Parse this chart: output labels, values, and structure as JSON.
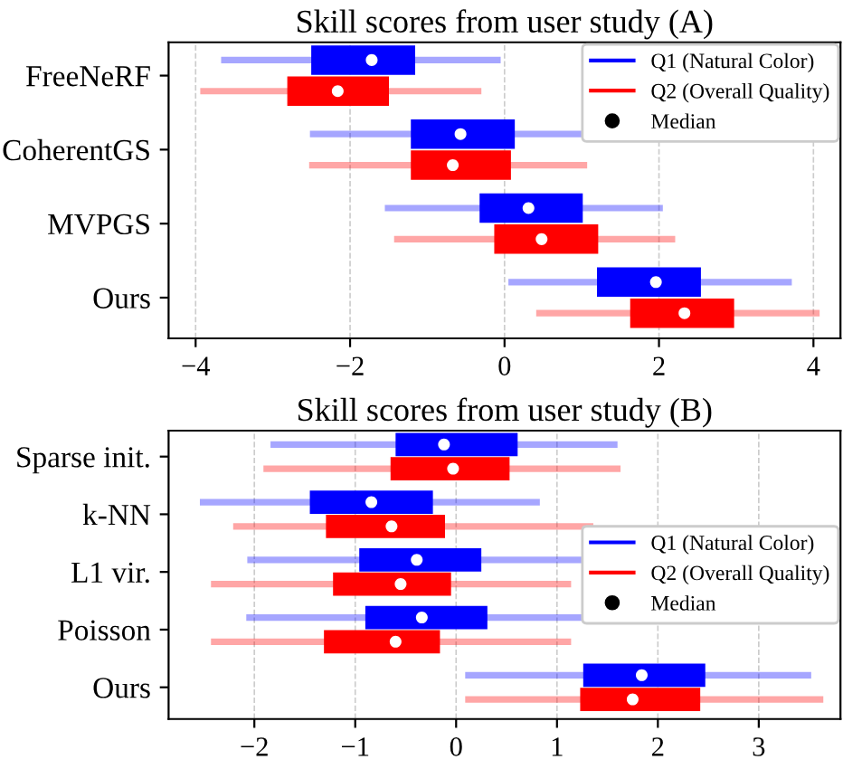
{
  "chart_data": [
    {
      "type": "box",
      "orientation": "horizontal",
      "title": "Skill scores from user study (A)",
      "categories": [
        "FreeNeRF",
        "CoherentGS",
        "MVPGS",
        "Ours"
      ],
      "xlim": [
        -4.35,
        4.35
      ],
      "xticks": [
        {
          "value": -4,
          "label": "−4"
        },
        {
          "value": -2,
          "label": "−2"
        },
        0,
        2,
        4
      ],
      "grid": "x",
      "legend": "top right",
      "annotations": [
        "Median"
      ],
      "series": [
        {
          "name": "Q1 (Natural Color)",
          "color": "#0000ff",
          "boxes": [
            {
              "low": -3.67,
              "q1": -2.49,
              "median": -1.72,
              "q3": -1.17,
              "high": -0.05
            },
            {
              "low": -2.52,
              "q1": -1.2,
              "median": -0.57,
              "q3": 0.12,
              "high": 1.08
            },
            {
              "low": -1.55,
              "q1": -0.31,
              "median": 0.31,
              "q3": 1.0,
              "high": 2.05
            },
            {
              "low": 0.05,
              "q1": 1.21,
              "median": 1.96,
              "q3": 2.53,
              "high": 3.72
            }
          ]
        },
        {
          "name": "Q2 (Overall Quality)",
          "color": "#ff0000",
          "boxes": [
            {
              "low": -3.94,
              "q1": -2.8,
              "median": -2.16,
              "q3": -1.51,
              "high": -0.3
            },
            {
              "low": -2.53,
              "q1": -1.2,
              "median": -0.67,
              "q3": 0.07,
              "high": 1.07
            },
            {
              "low": -1.43,
              "q1": -0.12,
              "median": 0.48,
              "q3": 1.2,
              "high": 2.21
            },
            {
              "low": 0.41,
              "q1": 1.64,
              "median": 2.33,
              "q3": 2.96,
              "high": 4.08
            }
          ]
        }
      ]
    },
    {
      "type": "box",
      "orientation": "horizontal",
      "title": "Skill scores from user study (B)",
      "categories": [
        "Sparse init.",
        "k-NN",
        "L1 vir.",
        "Poisson",
        "Ours"
      ],
      "xlim": [
        -2.85,
        3.81
      ],
      "xticks": [
        {
          "value": -2,
          "label": "−2"
        },
        {
          "value": -1,
          "label": "−1"
        },
        0,
        1,
        2,
        3
      ],
      "grid": "x",
      "legend": "right",
      "annotations": [
        "Median"
      ],
      "series": [
        {
          "name": "Q1 (Natural Color)",
          "color": "#0000ff",
          "boxes": [
            {
              "low": -1.84,
              "q1": -0.59,
              "median": -0.12,
              "q3": 0.6,
              "high": 1.6
            },
            {
              "low": -2.54,
              "q1": -1.44,
              "median": -0.84,
              "q3": -0.24,
              "high": 0.83
            },
            {
              "low": -2.07,
              "q1": -0.95,
              "median": -0.39,
              "q3": 0.24,
              "high": 1.31
            },
            {
              "low": -2.08,
              "q1": -0.89,
              "median": -0.34,
              "q3": 0.3,
              "high": 1.31
            },
            {
              "low": 0.09,
              "q1": 1.27,
              "median": 1.84,
              "q3": 2.46,
              "high": 3.52
            }
          ]
        },
        {
          "name": "Q2 (Overall Quality)",
          "color": "#ff0000",
          "boxes": [
            {
              "low": -1.91,
              "q1": -0.64,
              "median": -0.03,
              "q3": 0.52,
              "high": 1.63
            },
            {
              "low": -2.21,
              "q1": -1.28,
              "median": -0.64,
              "q3": -0.12,
              "high": 1.36
            },
            {
              "low": -2.43,
              "q1": -1.21,
              "median": -0.55,
              "q3": -0.06,
              "high": 1.14
            },
            {
              "low": -2.43,
              "q1": -1.3,
              "median": -0.6,
              "q3": -0.17,
              "high": 1.14
            },
            {
              "low": 0.09,
              "q1": 1.24,
              "median": 1.75,
              "q3": 2.41,
              "high": 3.64
            }
          ]
        }
      ]
    }
  ]
}
